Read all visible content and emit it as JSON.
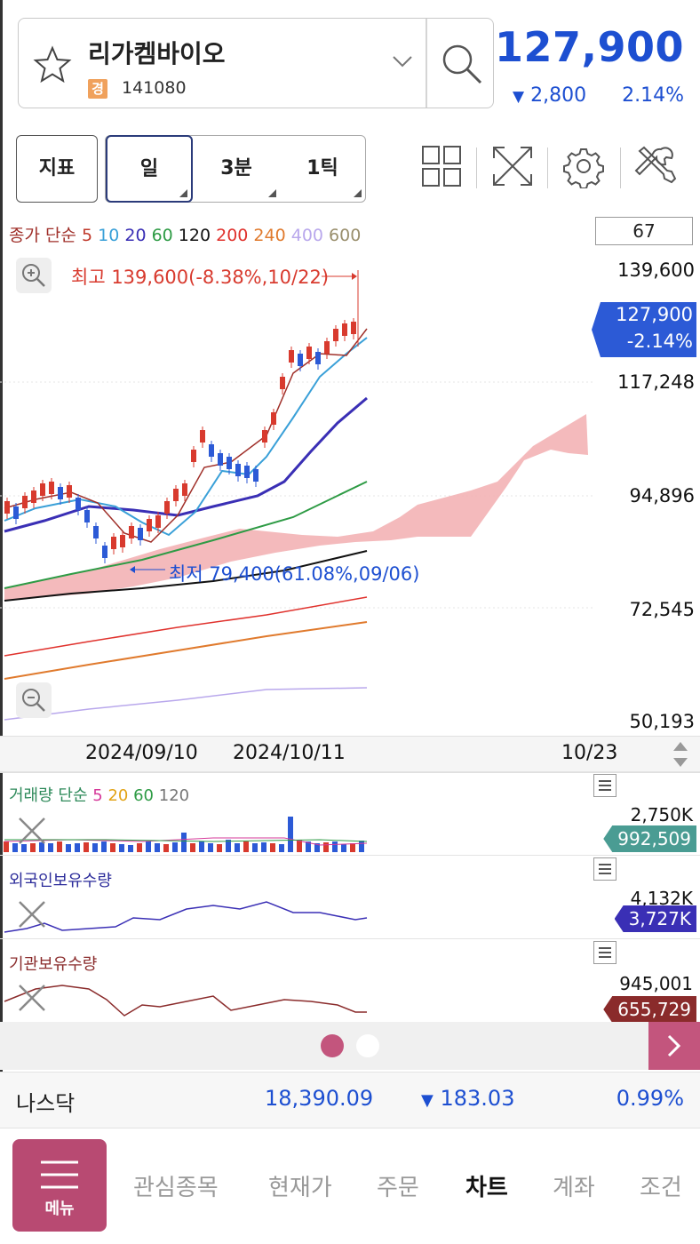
{
  "header": {
    "stock_name": "리가켐바이오",
    "market_badge": "경",
    "stock_code": "141080",
    "current_price": "127,900",
    "change_arrow": "▼",
    "change_amount": "2,800",
    "change_rate": "2.14%"
  },
  "toolbar": {
    "indicator_label": "지표",
    "periods": [
      "일",
      "3분",
      "1틱"
    ]
  },
  "chart": {
    "legend_prefix": "종가 단순",
    "ma_periods": [
      {
        "label": "5",
        "color": "#c0392b"
      },
      {
        "label": "10",
        "color": "#3aa0d8"
      },
      {
        "label": "20",
        "color": "#3a2fb5"
      },
      {
        "label": "60",
        "color": "#2e9b45"
      },
      {
        "label": "120",
        "color": "#111111"
      },
      {
        "label": "200",
        "color": "#e0322d"
      },
      {
        "label": "240",
        "color": "#e07a2d"
      },
      {
        "label": "400",
        "color": "#b9a8ec"
      },
      {
        "label": "600",
        "color": "#9a8f6d"
      }
    ],
    "ma_counter": "67",
    "high_annotation": "최고 139,600(-8.38%,10/22)",
    "low_annotation": "최저 79,400(61.08%,09/06)",
    "price_ticks": [
      "139,600",
      "117,248",
      "94,896",
      "72,545",
      "50,193"
    ],
    "price_tag_value": "127,900",
    "price_tag_rate": "-2.14%",
    "date_labels": [
      "2024/09/10",
      "2024/10/11",
      "10/23"
    ]
  },
  "volume": {
    "title": "거래량",
    "prefix": "단순",
    "periods": [
      {
        "label": "5",
        "color": "#d63a9a"
      },
      {
        "label": "20",
        "color": "#e2a316"
      },
      {
        "label": "60",
        "color": "#2e9b45"
      },
      {
        "label": "120",
        "color": "#777777"
      }
    ],
    "max_value": "2,750K",
    "current_value": "992,509"
  },
  "foreign": {
    "title": "외국인보유수량",
    "max_value": "4,132K",
    "current_value": "3,727K"
  },
  "institution": {
    "title": "기관보유수량",
    "max_value": "945,001",
    "current_value": "655,729"
  },
  "index_bar": {
    "name": "나스닥",
    "value": "18,390.09",
    "change_arrow": "▼",
    "change": "183.03",
    "rate": "0.99%"
  },
  "nav": {
    "menu_label": "메뉴",
    "items": [
      "관심종목",
      "현재가",
      "주문",
      "차트",
      "계좌",
      "조건"
    ],
    "active": "차트"
  },
  "colors": {
    "down": "#1d4fd1",
    "up": "#d83a2e",
    "accent": "#b84a72"
  }
}
